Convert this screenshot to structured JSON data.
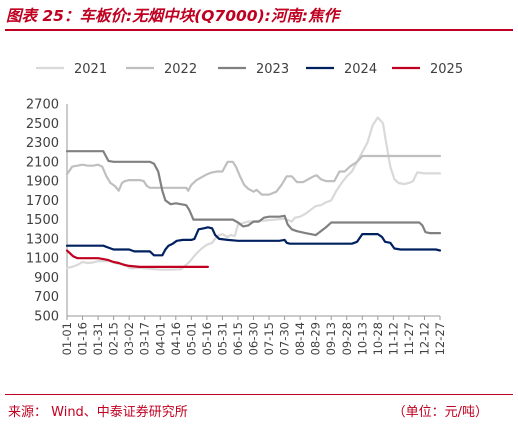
{
  "header": {
    "title": "图表 25：车板价:无烟中块(Q7000):河南:焦作"
  },
  "footer": {
    "source": "来源：  Wind、中泰证券研究所",
    "unit": "（单位：元/吨）"
  },
  "chart_data": {
    "type": "line",
    "ylim": [
      500,
      2700
    ],
    "yticks": [
      500,
      700,
      900,
      1100,
      1300,
      1500,
      1700,
      1900,
      2100,
      2300,
      2500,
      2700
    ],
    "categories": [
      "01-01",
      "01-16",
      "01-31",
      "02-15",
      "03-02",
      "03-17",
      "04-01",
      "04-16",
      "05-01",
      "05-16",
      "05-31",
      "06-15",
      "06-30",
      "07-15",
      "07-30",
      "08-14",
      "08-29",
      "09-13",
      "09-28",
      "10-13",
      "10-28",
      "11-12",
      "11-27",
      "12-12",
      "12-27"
    ],
    "xlim": [
      0,
      360
    ],
    "xticks": [
      0,
      15,
      30,
      45,
      60,
      75,
      90,
      105,
      120,
      135,
      150,
      165,
      180,
      195,
      210,
      225,
      240,
      255,
      270,
      285,
      300,
      315,
      330,
      345,
      360
    ],
    "grid": false,
    "legend_position": "top",
    "series": [
      {
        "name": "2021",
        "color": "#d9d9d9",
        "width": 2.2,
        "points": [
          [
            0,
            1000
          ],
          [
            5,
            1010
          ],
          [
            10,
            1030
          ],
          [
            15,
            1060
          ],
          [
            20,
            1050
          ],
          [
            25,
            1055
          ],
          [
            30,
            1070
          ],
          [
            40,
            1070
          ],
          [
            50,
            1040
          ],
          [
            55,
            1040
          ],
          [
            60,
            1000
          ],
          [
            63,
            995
          ],
          [
            70,
            1000
          ],
          [
            80,
            990
          ],
          [
            90,
            980
          ],
          [
            100,
            980
          ],
          [
            110,
            985
          ],
          [
            118,
            1060
          ],
          [
            125,
            1150
          ],
          [
            130,
            1200
          ],
          [
            135,
            1240
          ],
          [
            140,
            1260
          ],
          [
            145,
            1330
          ],
          [
            150,
            1350
          ],
          [
            155,
            1320
          ],
          [
            158,
            1340
          ],
          [
            162,
            1330
          ],
          [
            165,
            1450
          ],
          [
            175,
            1480
          ],
          [
            190,
            1490
          ],
          [
            200,
            1500
          ],
          [
            210,
            1510
          ],
          [
            217,
            1480
          ],
          [
            220,
            1520
          ],
          [
            225,
            1530
          ],
          [
            230,
            1560
          ],
          [
            235,
            1600
          ],
          [
            240,
            1640
          ],
          [
            245,
            1650
          ],
          [
            250,
            1680
          ],
          [
            255,
            1700
          ],
          [
            260,
            1800
          ],
          [
            265,
            1880
          ],
          [
            270,
            1950
          ],
          [
            275,
            2000
          ],
          [
            280,
            2100
          ],
          [
            285,
            2200
          ],
          [
            290,
            2300
          ],
          [
            295,
            2480
          ],
          [
            300,
            2560
          ],
          [
            305,
            2500
          ],
          [
            308,
            2300
          ],
          [
            312,
            2050
          ],
          [
            316,
            1920
          ],
          [
            320,
            1880
          ],
          [
            325,
            1870
          ],
          [
            330,
            1880
          ],
          [
            334,
            1900
          ],
          [
            338,
            1990
          ],
          [
            345,
            1980
          ],
          [
            355,
            1980
          ],
          [
            360,
            1980
          ]
        ]
      },
      {
        "name": "2022",
        "color": "#bfbfbf",
        "width": 2.2,
        "points": [
          [
            0,
            1970
          ],
          [
            5,
            2050
          ],
          [
            10,
            2060
          ],
          [
            15,
            2070
          ],
          [
            20,
            2060
          ],
          [
            25,
            2060
          ],
          [
            30,
            2070
          ],
          [
            34,
            2050
          ],
          [
            38,
            1950
          ],
          [
            42,
            1880
          ],
          [
            46,
            1850
          ],
          [
            50,
            1800
          ],
          [
            53,
            1880
          ],
          [
            56,
            1900
          ],
          [
            60,
            1910
          ],
          [
            65,
            1910
          ],
          [
            70,
            1910
          ],
          [
            74,
            1900
          ],
          [
            77,
            1850
          ],
          [
            80,
            1830
          ],
          [
            85,
            1830
          ],
          [
            90,
            1830
          ],
          [
            100,
            1830
          ],
          [
            110,
            1830
          ],
          [
            115,
            1830
          ],
          [
            117,
            1800
          ],
          [
            120,
            1860
          ],
          [
            125,
            1910
          ],
          [
            130,
            1940
          ],
          [
            135,
            1970
          ],
          [
            140,
            1990
          ],
          [
            145,
            2000
          ],
          [
            150,
            2000
          ],
          [
            155,
            2100
          ],
          [
            160,
            2100
          ],
          [
            163,
            2050
          ],
          [
            167,
            1950
          ],
          [
            171,
            1860
          ],
          [
            175,
            1820
          ],
          [
            180,
            1790
          ],
          [
            183,
            1810
          ],
          [
            188,
            1760
          ],
          [
            195,
            1760
          ],
          [
            202,
            1790
          ],
          [
            207,
            1860
          ],
          [
            212,
            1950
          ],
          [
            217,
            1950
          ],
          [
            222,
            1890
          ],
          [
            228,
            1890
          ],
          [
            233,
            1920
          ],
          [
            238,
            1950
          ],
          [
            241,
            1960
          ],
          [
            245,
            1920
          ],
          [
            250,
            1900
          ],
          [
            258,
            1900
          ],
          [
            263,
            2000
          ],
          [
            268,
            2000
          ],
          [
            273,
            2050
          ],
          [
            280,
            2100
          ],
          [
            285,
            2160
          ],
          [
            290,
            2160
          ],
          [
            300,
            2160
          ],
          [
            320,
            2160
          ],
          [
            340,
            2160
          ],
          [
            360,
            2160
          ]
        ]
      },
      {
        "name": "2023",
        "color": "#808080",
        "width": 2.2,
        "points": [
          [
            0,
            2210
          ],
          [
            10,
            2210
          ],
          [
            20,
            2210
          ],
          [
            30,
            2210
          ],
          [
            35,
            2210
          ],
          [
            40,
            2110
          ],
          [
            45,
            2100
          ],
          [
            50,
            2100
          ],
          [
            60,
            2100
          ],
          [
            70,
            2100
          ],
          [
            80,
            2100
          ],
          [
            84,
            2080
          ],
          [
            88,
            2000
          ],
          [
            92,
            1800
          ],
          [
            95,
            1700
          ],
          [
            100,
            1660
          ],
          [
            105,
            1670
          ],
          [
            110,
            1660
          ],
          [
            115,
            1650
          ],
          [
            118,
            1600
          ],
          [
            122,
            1500
          ],
          [
            130,
            1500
          ],
          [
            140,
            1500
          ],
          [
            150,
            1500
          ],
          [
            160,
            1500
          ],
          [
            165,
            1470
          ],
          [
            170,
            1430
          ],
          [
            175,
            1440
          ],
          [
            180,
            1480
          ],
          [
            185,
            1480
          ],
          [
            190,
            1520
          ],
          [
            195,
            1530
          ],
          [
            200,
            1530
          ],
          [
            205,
            1530
          ],
          [
            210,
            1540
          ],
          [
            213,
            1450
          ],
          [
            217,
            1400
          ],
          [
            222,
            1380
          ],
          [
            230,
            1360
          ],
          [
            235,
            1350
          ],
          [
            240,
            1340
          ],
          [
            245,
            1380
          ],
          [
            250,
            1420
          ],
          [
            255,
            1470
          ],
          [
            260,
            1470
          ],
          [
            270,
            1470
          ],
          [
            280,
            1470
          ],
          [
            290,
            1470
          ],
          [
            300,
            1470
          ],
          [
            310,
            1470
          ],
          [
            320,
            1470
          ],
          [
            330,
            1470
          ],
          [
            340,
            1470
          ],
          [
            343,
            1440
          ],
          [
            346,
            1370
          ],
          [
            350,
            1360
          ],
          [
            360,
            1360
          ]
        ]
      },
      {
        "name": "2024",
        "color": "#002060",
        "width": 2.2,
        "points": [
          [
            0,
            1230
          ],
          [
            10,
            1230
          ],
          [
            20,
            1230
          ],
          [
            30,
            1230
          ],
          [
            35,
            1230
          ],
          [
            40,
            1210
          ],
          [
            45,
            1190
          ],
          [
            55,
            1190
          ],
          [
            60,
            1190
          ],
          [
            65,
            1170
          ],
          [
            70,
            1170
          ],
          [
            80,
            1170
          ],
          [
            84,
            1130
          ],
          [
            88,
            1130
          ],
          [
            92,
            1130
          ],
          [
            95,
            1190
          ],
          [
            98,
            1230
          ],
          [
            102,
            1250
          ],
          [
            106,
            1280
          ],
          [
            112,
            1290
          ],
          [
            120,
            1290
          ],
          [
            123,
            1300
          ],
          [
            127,
            1400
          ],
          [
            132,
            1410
          ],
          [
            136,
            1420
          ],
          [
            140,
            1410
          ],
          [
            143,
            1340
          ],
          [
            147,
            1300
          ],
          [
            155,
            1290
          ],
          [
            165,
            1280
          ],
          [
            175,
            1280
          ],
          [
            185,
            1280
          ],
          [
            195,
            1280
          ],
          [
            205,
            1280
          ],
          [
            210,
            1290
          ],
          [
            212,
            1260
          ],
          [
            215,
            1250
          ],
          [
            225,
            1250
          ],
          [
            235,
            1250
          ],
          [
            245,
            1250
          ],
          [
            255,
            1250
          ],
          [
            265,
            1250
          ],
          [
            275,
            1250
          ],
          [
            280,
            1270
          ],
          [
            285,
            1350
          ],
          [
            290,
            1350
          ],
          [
            300,
            1350
          ],
          [
            304,
            1320
          ],
          [
            307,
            1270
          ],
          [
            312,
            1260
          ],
          [
            316,
            1200
          ],
          [
            322,
            1190
          ],
          [
            330,
            1190
          ],
          [
            340,
            1190
          ],
          [
            350,
            1190
          ],
          [
            356,
            1190
          ],
          [
            360,
            1180
          ]
        ]
      },
      {
        "name": "2025",
        "color": "#c00020",
        "width": 2.2,
        "points": [
          [
            0,
            1180
          ],
          [
            3,
            1150
          ],
          [
            6,
            1120
          ],
          [
            10,
            1100
          ],
          [
            20,
            1100
          ],
          [
            30,
            1100
          ],
          [
            35,
            1090
          ],
          [
            40,
            1080
          ],
          [
            45,
            1060
          ],
          [
            50,
            1050
          ],
          [
            55,
            1030
          ],
          [
            60,
            1020
          ],
          [
            70,
            1010
          ],
          [
            80,
            1010
          ],
          [
            90,
            1010
          ],
          [
            100,
            1010
          ],
          [
            110,
            1010
          ],
          [
            120,
            1010
          ],
          [
            130,
            1010
          ],
          [
            136,
            1010
          ]
        ]
      }
    ]
  }
}
